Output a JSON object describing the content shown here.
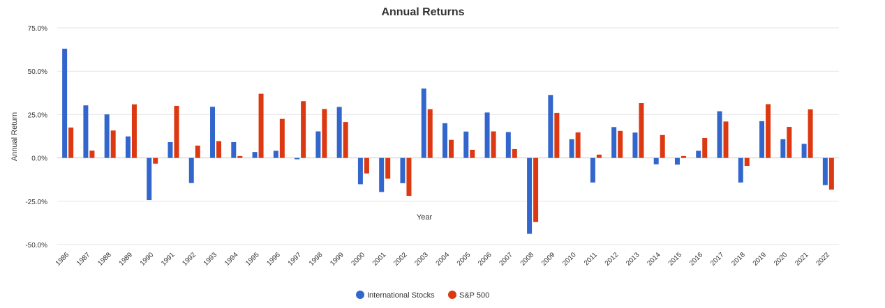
{
  "chart_data": {
    "type": "bar",
    "title": "Annual Returns",
    "xlabel": "Year",
    "ylabel": "Annual Return",
    "ylim": [
      -50,
      75
    ],
    "yticks": [
      75,
      50,
      25,
      0,
      -25,
      -50
    ],
    "ytick_labels": [
      "75.0%",
      "50.0%",
      "25.0%",
      "0.0%",
      "-25.0%",
      "-50.0%"
    ],
    "grid": true,
    "legend_position": "bottom-center",
    "categories": [
      "1986",
      "1987",
      "1988",
      "1989",
      "1990",
      "1991",
      "1992",
      "1993",
      "1994",
      "1995",
      "1996",
      "1997",
      "1998",
      "1999",
      "2000",
      "2001",
      "2002",
      "2003",
      "2004",
      "2005",
      "2006",
      "2007",
      "2008",
      "2009",
      "2010",
      "2011",
      "2012",
      "2013",
      "2014",
      "2015",
      "2016",
      "2017",
      "2018",
      "2019",
      "2020",
      "2021",
      "2022"
    ],
    "series": [
      {
        "name": "International Stocks",
        "color": "#3366cc",
        "values": [
          63.0,
          30.3,
          25.1,
          12.4,
          -24.3,
          9.1,
          -14.5,
          29.5,
          9.1,
          3.4,
          4.1,
          -0.8,
          15.3,
          29.4,
          -15.2,
          -19.7,
          -14.6,
          40.0,
          20.0,
          15.2,
          26.2,
          14.9,
          -43.8,
          36.3,
          10.8,
          -14.2,
          17.8,
          14.6,
          -3.7,
          -3.9,
          4.1,
          26.9,
          -14.2,
          21.2,
          10.8,
          8.1,
          -15.7
        ]
      },
      {
        "name": "S&P 500",
        "color": "#dc3912",
        "values": [
          17.5,
          4.2,
          15.8,
          30.9,
          -3.3,
          30.0,
          7.1,
          9.7,
          1.1,
          37.0,
          22.5,
          32.7,
          28.2,
          20.7,
          -9.0,
          -12.0,
          -21.9,
          28.1,
          10.4,
          4.7,
          15.3,
          5.1,
          -37.0,
          26.0,
          14.7,
          1.9,
          15.6,
          31.6,
          13.2,
          1.1,
          11.5,
          21.0,
          -4.6,
          31.0,
          17.9,
          28.0,
          -18.3
        ]
      }
    ]
  }
}
